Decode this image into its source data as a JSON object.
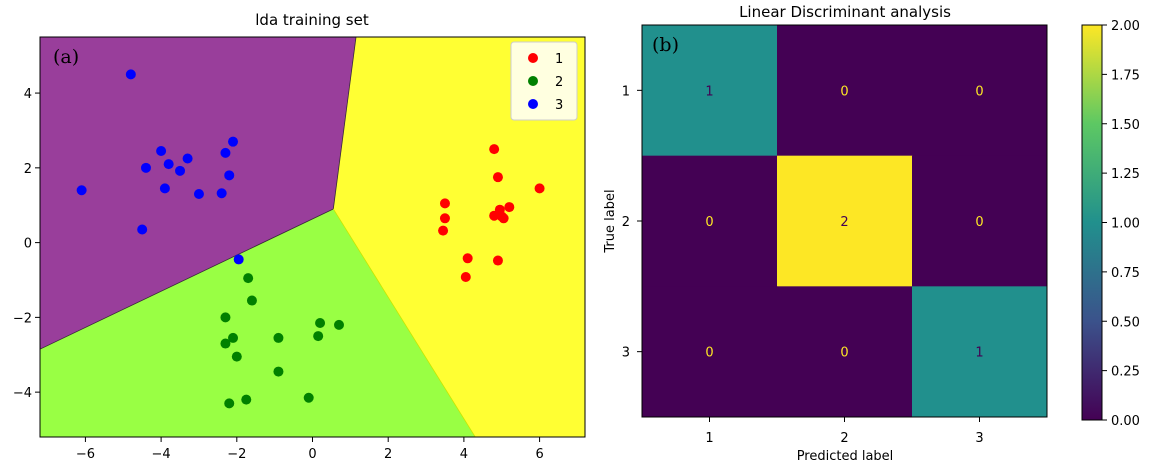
{
  "chart_data": [
    {
      "type": "scatter",
      "panel_tag": "(a)",
      "title": "lda training set",
      "xlim": [
        -7.2,
        7.2
      ],
      "ylim": [
        -5.2,
        5.5
      ],
      "xticks": [
        -6,
        -4,
        -2,
        0,
        2,
        4,
        6
      ],
      "yticks": [
        -4,
        -2,
        0,
        2,
        4
      ],
      "xtick_labels": [
        "−6",
        "−4",
        "−2",
        "0",
        "2",
        "4",
        "6"
      ],
      "ytick_labels": [
        "−4",
        "−2",
        "0",
        "2",
        "4"
      ],
      "legend_placement": "top-right",
      "grid": false,
      "regions": [
        {
          "class": "1",
          "color": "#ffff33"
        },
        {
          "class": "2",
          "color": "#99ff44"
        },
        {
          "class": "3",
          "color": "#993e9b"
        }
      ],
      "boundary": {
        "junction": [
          0.55,
          0.9
        ],
        "rays": [
          {
            "between": "3|1",
            "to": [
              1.15,
              5.5
            ]
          },
          {
            "between": "2|3",
            "to": [
              -7.2,
              -2.85
            ]
          },
          {
            "between": "2|1",
            "to": [
              4.3,
              -5.2
            ]
          }
        ]
      },
      "series": [
        {
          "name": "1",
          "color": "#ff0000",
          "points": [
            [
              4.8,
              2.5
            ],
            [
              4.9,
              1.75
            ],
            [
              6.0,
              1.45
            ],
            [
              3.5,
              1.05
            ],
            [
              3.5,
              0.65
            ],
            [
              5.2,
              0.95
            ],
            [
              4.95,
              0.88
            ],
            [
              4.8,
              0.72
            ],
            [
              5.0,
              0.7
            ],
            [
              5.05,
              0.65
            ],
            [
              3.45,
              0.32
            ],
            [
              4.1,
              -0.42
            ],
            [
              4.9,
              -0.48
            ],
            [
              4.05,
              -0.92
            ]
          ]
        },
        {
          "name": "2",
          "color": "#008000",
          "points": [
            [
              -1.7,
              -0.95
            ],
            [
              -1.6,
              -1.55
            ],
            [
              -2.3,
              -2.0
            ],
            [
              -2.1,
              -2.55
            ],
            [
              -2.3,
              -2.7
            ],
            [
              -2.0,
              -3.05
            ],
            [
              0.2,
              -2.15
            ],
            [
              0.15,
              -2.5
            ],
            [
              0.7,
              -2.2
            ],
            [
              -0.9,
              -2.55
            ],
            [
              -0.9,
              -3.45
            ],
            [
              -1.75,
              -4.2
            ],
            [
              -2.2,
              -4.3
            ],
            [
              -0.1,
              -4.15
            ]
          ]
        },
        {
          "name": "3",
          "color": "#0000ff",
          "points": [
            [
              -4.8,
              4.5
            ],
            [
              -2.1,
              2.7
            ],
            [
              -4.0,
              2.45
            ],
            [
              -2.3,
              2.4
            ],
            [
              -3.3,
              2.25
            ],
            [
              -3.8,
              2.1
            ],
            [
              -4.4,
              2.0
            ],
            [
              -3.5,
              1.92
            ],
            [
              -2.2,
              1.8
            ],
            [
              -3.9,
              1.45
            ],
            [
              -3.0,
              1.3
            ],
            [
              -2.4,
              1.32
            ],
            [
              -6.1,
              1.4
            ],
            [
              -4.5,
              0.35
            ],
            [
              -1.95,
              -0.45
            ]
          ]
        }
      ]
    },
    {
      "type": "heatmap",
      "panel_tag": "(b)",
      "title": "Linear Discriminant analysis",
      "xlabel": "Predicted label",
      "ylabel": "True label",
      "x_categories": [
        "1",
        "2",
        "3"
      ],
      "y_categories": [
        "1",
        "2",
        "3"
      ],
      "matrix": [
        [
          1,
          0,
          0
        ],
        [
          0,
          2,
          0
        ],
        [
          0,
          0,
          1
        ]
      ],
      "cell_labels": [
        [
          "1",
          "0",
          "0"
        ],
        [
          "0",
          "2",
          "0"
        ],
        [
          "0",
          "0",
          "1"
        ]
      ],
      "colormap": "viridis",
      "colormap_stops": [
        "#440154",
        "#3b528b",
        "#21908d",
        "#5dc863",
        "#fde725"
      ],
      "text_colors": {
        "dark_cell": "#fde725",
        "light_cell": "#440154"
      },
      "colorbar": {
        "vmin": 0.0,
        "vmax": 2.0,
        "ticks": [
          0.0,
          0.25,
          0.5,
          0.75,
          1.0,
          1.25,
          1.5,
          1.75,
          2.0
        ],
        "tick_labels": [
          "0.00",
          "0.25",
          "0.50",
          "0.75",
          "1.00",
          "1.25",
          "1.50",
          "1.75",
          "2.00"
        ]
      }
    }
  ]
}
